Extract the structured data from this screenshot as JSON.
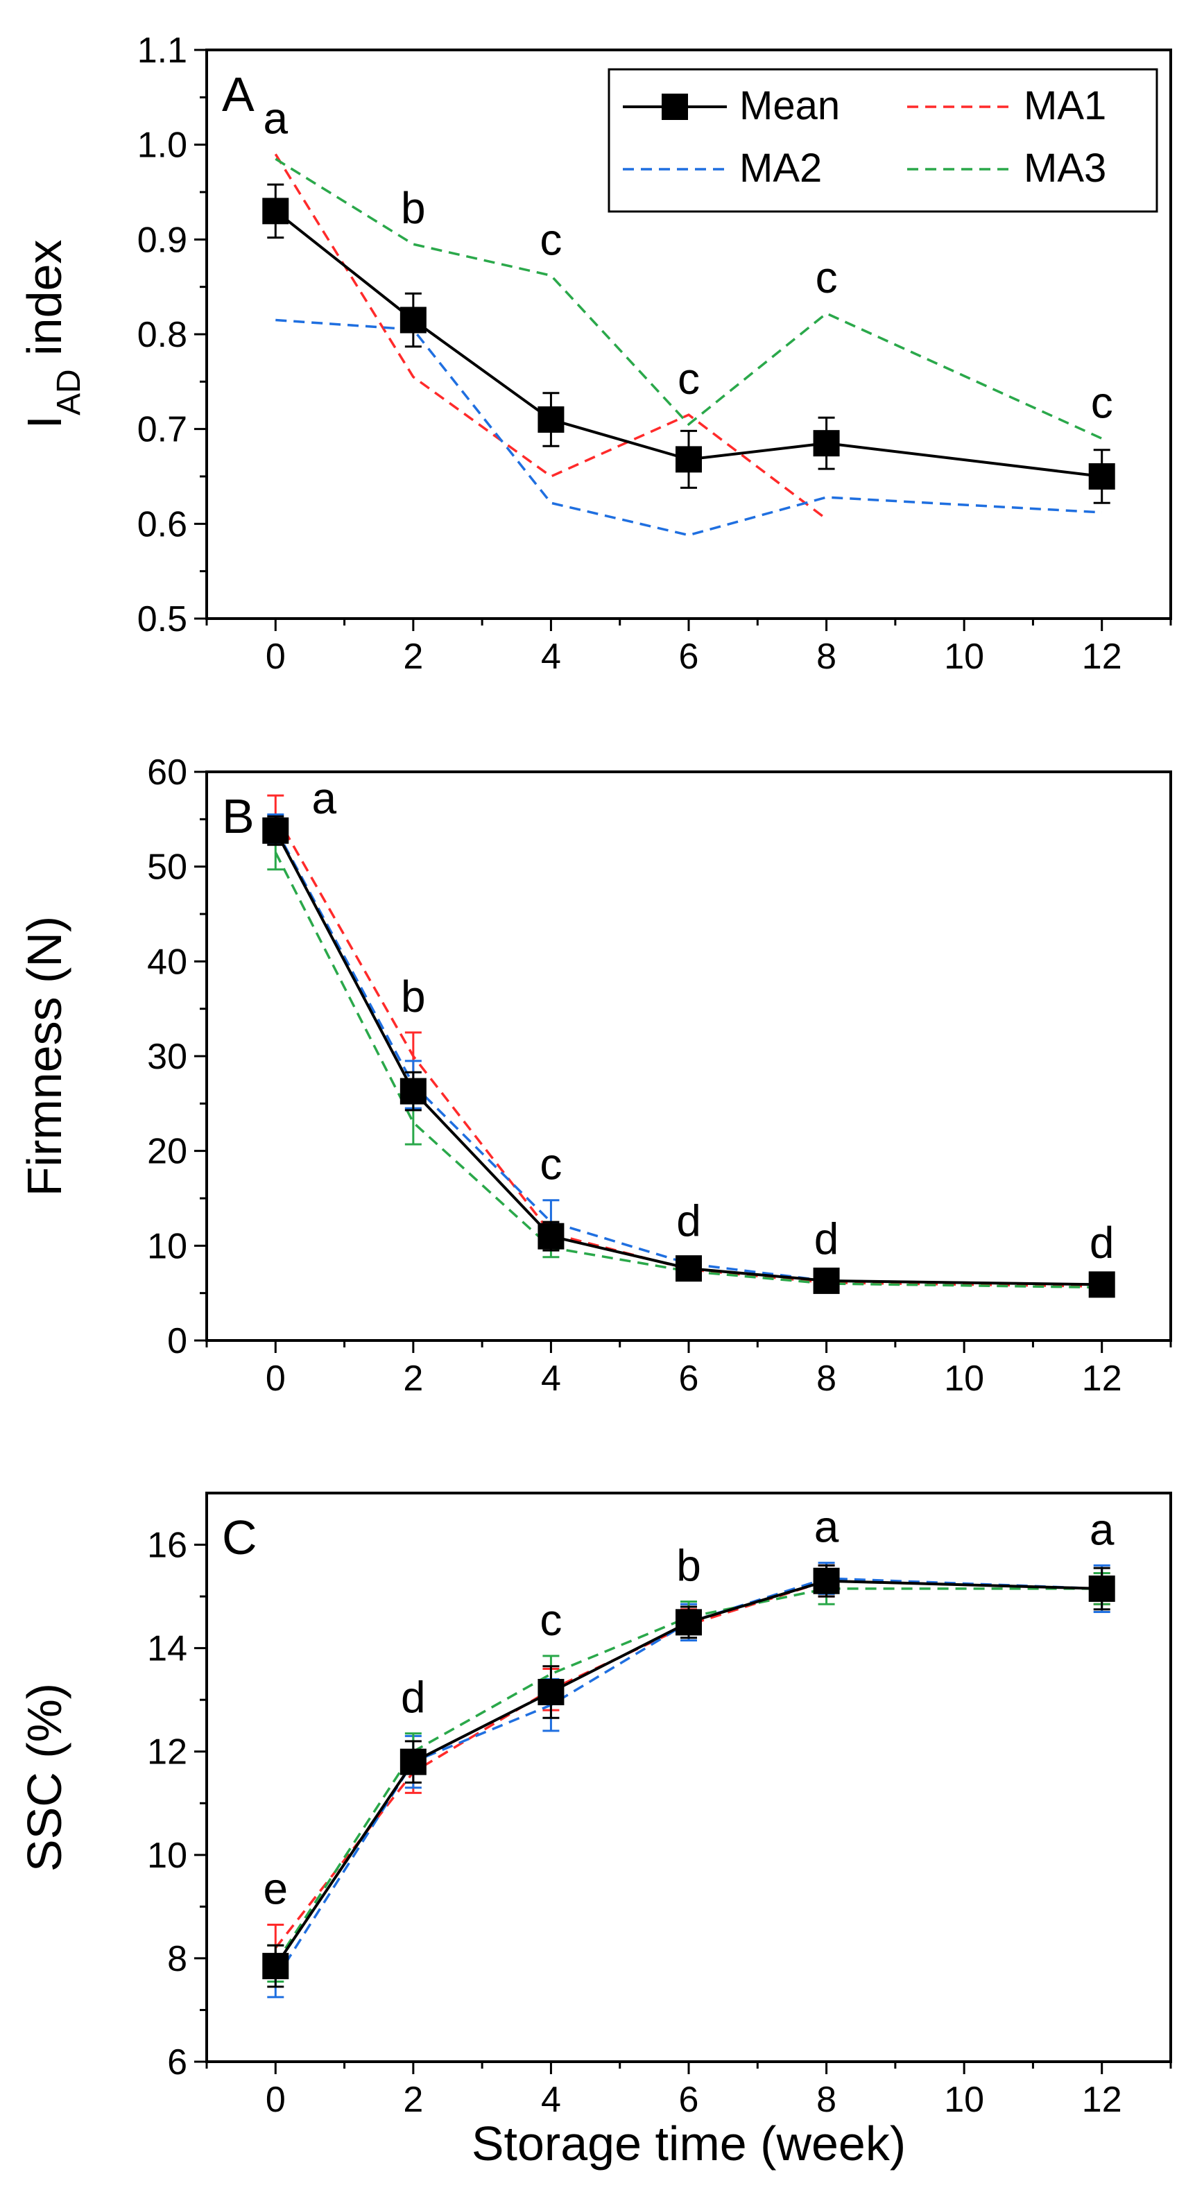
{
  "colors": {
    "mean": "#000000",
    "MA1": "#ff2a2a",
    "MA2": "#1f6fe0",
    "MA3": "#2aa84a"
  },
  "legend": {
    "entries": [
      {
        "key": "mean",
        "label": "Mean"
      },
      {
        "key": "MA1",
        "label": "MA1"
      },
      {
        "key": "MA2",
        "label": "MA2"
      },
      {
        "key": "MA3",
        "label": "MA3"
      }
    ]
  },
  "xlabel": "Storage time (week)",
  "chart_data": [
    {
      "type": "line",
      "panel": "A",
      "ylabel": "I",
      "ylabel_sub": "AD",
      "ylabel_rest": " index",
      "xlabel": "Storage time (week)",
      "xlim": [
        -1,
        13
      ],
      "ylim": [
        0.5,
        1.1
      ],
      "xticks": [
        0,
        2,
        4,
        6,
        8,
        10,
        12
      ],
      "yticks": [
        0.5,
        0.6,
        0.7,
        0.8,
        0.9,
        1.0,
        1.1
      ],
      "ytick_labels": [
        "0.5",
        "0.6",
        "0.7",
        "0.8",
        "0.9",
        "1.0",
        "1.1"
      ],
      "x": [
        0,
        2,
        4,
        6,
        8,
        12
      ],
      "series": [
        {
          "name": "Mean",
          "key": "mean",
          "values": [
            0.93,
            0.815,
            0.71,
            0.668,
            0.685,
            0.65
          ],
          "err": [
            0.028,
            0.028,
            0.028,
            0.03,
            0.027,
            0.028
          ]
        },
        {
          "name": "MA1",
          "key": "MA1",
          "values": [
            0.99,
            0.755,
            0.65,
            0.715,
            0.605,
            null
          ]
        },
        {
          "name": "MA2",
          "key": "MA2",
          "values": [
            0.815,
            0.805,
            0.622,
            0.588,
            0.628,
            0.612
          ]
        },
        {
          "name": "MA3",
          "key": "MA3",
          "values": [
            0.985,
            0.895,
            0.862,
            0.705,
            0.822,
            0.69
          ]
        }
      ],
      "significance": [
        {
          "x": 0,
          "label": "a"
        },
        {
          "x": 2,
          "label": "b"
        },
        {
          "x": 4,
          "label": "c"
        },
        {
          "x": 6,
          "label": "c"
        },
        {
          "x": 8,
          "label": "c"
        },
        {
          "x": 12,
          "label": "c"
        }
      ]
    },
    {
      "type": "line",
      "panel": "B",
      "ylabel": "Firmness (N)",
      "xlabel": "Storage time (week)",
      "xlim": [
        -1,
        13
      ],
      "ylim": [
        0,
        60
      ],
      "xticks": [
        0,
        2,
        4,
        6,
        8,
        10,
        12
      ],
      "yticks": [
        0,
        10,
        20,
        30,
        40,
        50,
        60
      ],
      "ytick_labels": [
        "0",
        "10",
        "20",
        "30",
        "40",
        "50",
        "60"
      ],
      "x": [
        0,
        2,
        4,
        6,
        8,
        12
      ],
      "series": [
        {
          "name": "Mean",
          "key": "mean",
          "values": [
            53.8,
            26.3,
            11.0,
            7.6,
            6.3,
            5.9
          ],
          "err": [
            1.5,
            2.0,
            1.5,
            0.8,
            0.6,
            0.6
          ]
        },
        {
          "name": "MA1",
          "key": "MA1",
          "values": [
            55.5,
            30.0,
            11.3,
            7.5,
            6.1,
            5.7
          ],
          "err": [
            2.0,
            2.5,
            1.0,
            0.6,
            0.6,
            0.6
          ]
        },
        {
          "name": "MA2",
          "key": "MA2",
          "values": [
            54.0,
            27.0,
            12.5,
            8.1,
            6.3,
            5.9
          ],
          "err": [
            1.5,
            2.5,
            2.3,
            0.7,
            0.6,
            0.6
          ]
        },
        {
          "name": "MA3",
          "key": "MA3",
          "values": [
            51.5,
            23.0,
            9.8,
            7.3,
            6.0,
            5.6
          ],
          "err": [
            1.8,
            2.3,
            1.0,
            0.6,
            0.5,
            0.5
          ]
        }
      ],
      "significance": [
        {
          "x": 0,
          "label": "a"
        },
        {
          "x": 2,
          "label": "b"
        },
        {
          "x": 4,
          "label": "c"
        },
        {
          "x": 6,
          "label": "d"
        },
        {
          "x": 8,
          "label": "d"
        },
        {
          "x": 12,
          "label": "d"
        }
      ]
    },
    {
      "type": "line",
      "panel": "C",
      "ylabel": "SSC (%)",
      "xlabel": "Storage time (week)",
      "xlim": [
        -1,
        13
      ],
      "ylim": [
        6,
        17
      ],
      "xticks": [
        0,
        2,
        4,
        6,
        8,
        10,
        12
      ],
      "yticks": [
        6,
        8,
        10,
        12,
        14,
        16
      ],
      "ytick_labels": [
        "6",
        "8",
        "10",
        "12",
        "14",
        "16"
      ],
      "x": [
        0,
        2,
        4,
        6,
        8,
        12
      ],
      "series": [
        {
          "name": "Mean",
          "key": "mean",
          "values": [
            7.85,
            11.8,
            13.15,
            14.5,
            15.3,
            15.15
          ],
          "err": [
            0.4,
            0.4,
            0.5,
            0.3,
            0.3,
            0.4
          ]
        },
        {
          "name": "MA1",
          "key": "MA1",
          "values": [
            8.2,
            11.6,
            13.2,
            14.45,
            15.3,
            15.15
          ],
          "err": [
            0.45,
            0.4,
            0.4,
            0.3,
            0.3,
            0.3
          ]
        },
        {
          "name": "MA2",
          "key": "MA2",
          "values": [
            7.6,
            11.8,
            12.9,
            14.5,
            15.35,
            15.15
          ],
          "err": [
            0.35,
            0.5,
            0.5,
            0.35,
            0.3,
            0.45
          ]
        },
        {
          "name": "MA3",
          "key": "MA3",
          "values": [
            7.9,
            12.0,
            13.5,
            14.6,
            15.15,
            15.15
          ],
          "err": [
            0.35,
            0.35,
            0.35,
            0.3,
            0.3,
            0.3
          ]
        }
      ],
      "significance": [
        {
          "x": 0,
          "label": "e"
        },
        {
          "x": 2,
          "label": "d"
        },
        {
          "x": 4,
          "label": "c"
        },
        {
          "x": 6,
          "label": "b"
        },
        {
          "x": 8,
          "label": "a"
        },
        {
          "x": 12,
          "label": "a"
        }
      ]
    }
  ]
}
